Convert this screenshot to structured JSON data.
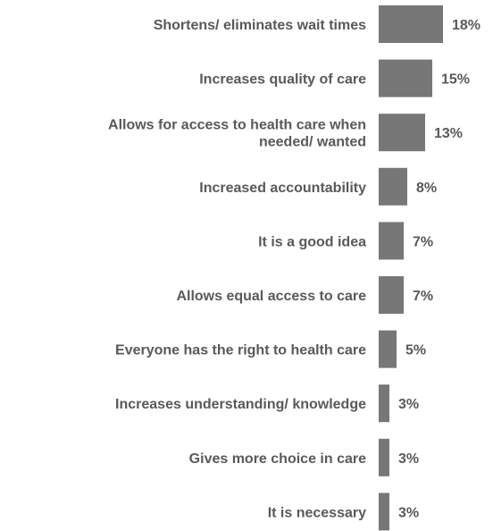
{
  "chart_data": {
    "type": "bar",
    "orientation": "horizontal",
    "categories": [
      [
        "Shortens/ eliminates wait times"
      ],
      [
        "Increases quality of care"
      ],
      [
        "Allows for access to health care when",
        "needed/ wanted"
      ],
      [
        "Increased accountability"
      ],
      [
        "It is a good idea"
      ],
      [
        "Allows equal access to care"
      ],
      [
        "Everyone has the right to health care"
      ],
      [
        "Increases understanding/ knowledge"
      ],
      [
        "Gives more choice in care"
      ],
      [
        "It is necessary"
      ]
    ],
    "values": [
      18,
      15,
      13,
      8,
      7,
      7,
      5,
      3,
      3,
      3
    ],
    "value_labels": [
      "18%",
      "15%",
      "13%",
      "8%",
      "7%",
      "7%",
      "5%",
      "3%",
      "3%",
      "3%"
    ],
    "unit": "%",
    "title": "",
    "xlabel": "",
    "ylabel": "",
    "xlim": [
      0,
      18
    ],
    "grid": false,
    "legend": "none",
    "bar_color": "#777777",
    "text_color": "#595959"
  }
}
